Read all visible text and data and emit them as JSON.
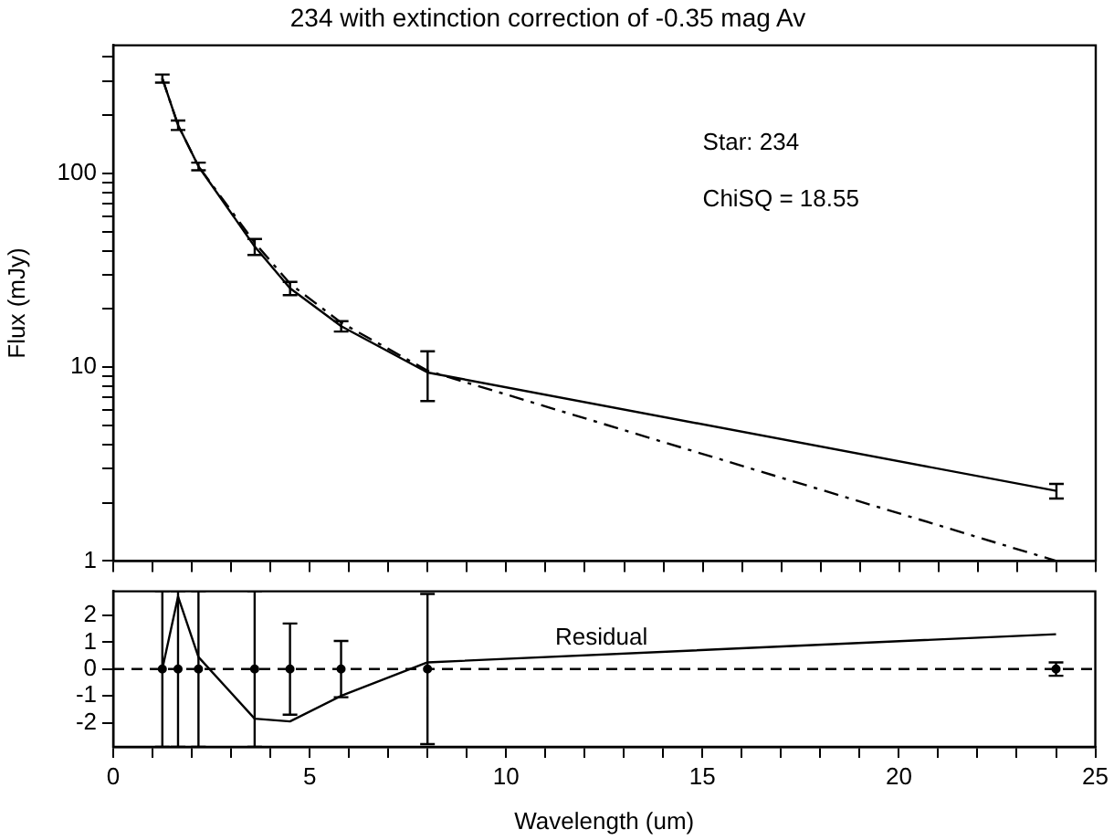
{
  "chart_data": [
    {
      "type": "line",
      "title": "234 with extinction correction of -0.35 mag Av",
      "ylabel": "Flux (mJy)",
      "log": "y",
      "xlim": [
        0,
        25
      ],
      "xticks": [
        0,
        {
          "value": 1,
          "label": null
        },
        {
          "value": 2,
          "label": null
        },
        {
          "value": 3,
          "label": null
        },
        {
          "value": 4,
          "label": null
        },
        5,
        {
          "value": 6,
          "label": null
        },
        {
          "value": 7,
          "label": null
        },
        {
          "value": 8,
          "label": null
        },
        {
          "value": 9,
          "label": null
        },
        10,
        {
          "value": 11,
          "label": null
        },
        {
          "value": 12,
          "label": null
        },
        {
          "value": 13,
          "label": null
        },
        {
          "value": 14,
          "label": null
        },
        15,
        {
          "value": 16,
          "label": null
        },
        {
          "value": 17,
          "label": null
        },
        {
          "value": 18,
          "label": null
        },
        {
          "value": 19,
          "label": null
        },
        20,
        {
          "value": 21,
          "label": null
        },
        {
          "value": 22,
          "label": null
        },
        {
          "value": 23,
          "label": null
        },
        {
          "value": 24,
          "label": null
        },
        25
      ],
      "ylim": [
        1,
        460
      ],
      "yticks": [
        1,
        {
          "value": 2,
          "label": null
        },
        {
          "value": 3,
          "label": null
        },
        {
          "value": 4,
          "label": null
        },
        {
          "value": 5,
          "label": null
        },
        {
          "value": 6,
          "label": null
        },
        {
          "value": 7,
          "label": null
        },
        {
          "value": 8,
          "label": null
        },
        {
          "value": 9,
          "label": null
        },
        10,
        {
          "value": 20,
          "label": null
        },
        {
          "value": 30,
          "label": null
        },
        {
          "value": 40,
          "label": null
        },
        {
          "value": 50,
          "label": null
        },
        {
          "value": 60,
          "label": null
        },
        {
          "value": 70,
          "label": null
        },
        {
          "value": 80,
          "label": null
        },
        {
          "value": 90,
          "label": null
        },
        100,
        {
          "value": 200,
          "label": null
        },
        {
          "value": 300,
          "label": null
        },
        {
          "value": 400,
          "label": null
        }
      ],
      "tick_labels": "y",
      "grid": false,
      "legend": false,
      "annotations": [
        "Star: 234",
        "ChiSQ = 18.55"
      ],
      "series": [
        {
          "color": "#000000",
          "line_style": "solid",
          "x": [
            1.25,
            1.65,
            2.17,
            3.6,
            4.5,
            5.8,
            8.0,
            24
          ],
          "values": [
            310,
            178,
            109,
            42,
            25.6,
            16.3,
            9.4,
            2.3
          ],
          "errors": [
            15,
            10,
            5,
            4,
            2,
            1,
            2.7,
            0.2
          ]
        },
        {
          "color": "#000000",
          "line_style": "dashdot",
          "x": [
            1.25,
            1.65,
            2.17,
            3.6,
            4.5,
            5.8,
            8.0,
            24
          ],
          "values": [
            310,
            178,
            109,
            44,
            27,
            17,
            9.6,
            1.0
          ]
        }
      ]
    },
    {
      "type": "line",
      "xlabel": "Wavelength (um)",
      "xlim": [
        0,
        25
      ],
      "xticks": [
        0,
        {
          "value": 1,
          "label": null
        },
        {
          "value": 2,
          "label": null
        },
        {
          "value": 3,
          "label": null
        },
        {
          "value": 4,
          "label": null
        },
        5,
        {
          "value": 6,
          "label": null
        },
        {
          "value": 7,
          "label": null
        },
        {
          "value": 8,
          "label": null
        },
        {
          "value": 9,
          "label": null
        },
        10,
        {
          "value": 11,
          "label": null
        },
        {
          "value": 12,
          "label": null
        },
        {
          "value": 13,
          "label": null
        },
        {
          "value": 14,
          "label": null
        },
        15,
        {
          "value": 16,
          "label": null
        },
        {
          "value": 17,
          "label": null
        },
        {
          "value": 18,
          "label": null
        },
        {
          "value": 19,
          "label": null
        },
        20,
        {
          "value": 21,
          "label": null
        },
        {
          "value": 22,
          "label": null
        },
        {
          "value": 23,
          "label": null
        },
        {
          "value": 24,
          "label": null
        },
        25
      ],
      "ylim": [
        -2.9,
        2.9
      ],
      "yticks": [
        -2,
        -1,
        0,
        1,
        2
      ],
      "grid": false,
      "legend": false,
      "annotations": [
        "Residual"
      ],
      "ref_lines": [
        {
          "axis": "y",
          "value": 0,
          "line_style": "dashed",
          "color": "#000000"
        }
      ],
      "series": [
        {
          "color": "#000000",
          "line_style": "solid",
          "x": [
            1.25,
            1.65,
            2.17,
            3.6,
            4.5,
            5.8,
            8.0,
            24
          ],
          "values": [
            0,
            2.7,
            0.45,
            -1.85,
            -1.95,
            -1.0,
            0.25,
            1.3
          ]
        },
        {
          "type": "scatter",
          "marker": "circle",
          "color": "#000000",
          "x": [
            1.25,
            1.65,
            2.17,
            3.6,
            4.5,
            5.8,
            8.0,
            24
          ],
          "values": [
            0,
            0,
            0,
            0,
            0,
            0,
            0,
            0
          ],
          "errors": [
            2.9,
            2.9,
            2.9,
            2.9,
            1.7,
            1.05,
            2.8,
            0.25
          ]
        }
      ]
    }
  ]
}
